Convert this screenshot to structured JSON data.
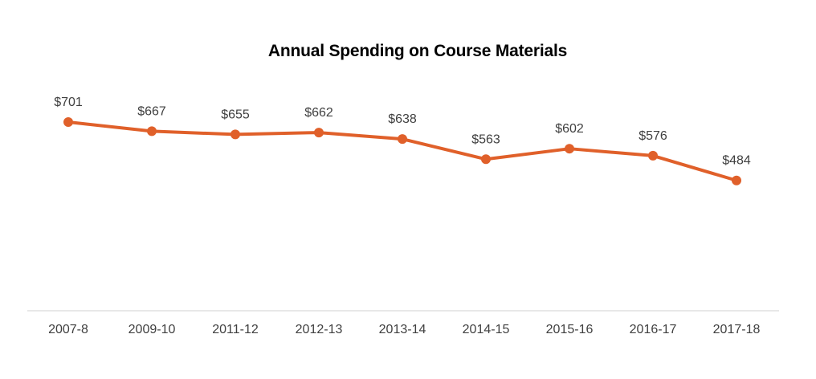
{
  "chart_data": {
    "type": "line",
    "title": "Annual Spending on Course Materials",
    "xlabel": "",
    "ylabel": "",
    "categories": [
      "2007-8",
      "2009-10",
      "2011-12",
      "2012-13",
      "2013-14",
      "2014-15",
      "2015-16",
      "2016-17",
      "2017-18"
    ],
    "series": [
      {
        "values": [
          701,
          667,
          655,
          662,
          638,
          563,
          602,
          576,
          484
        ],
        "data_labels": [
          "$701",
          "$667",
          "$655",
          "$662",
          "$638",
          "$563",
          "$602",
          "$576",
          "$484"
        ],
        "color": "#E0602A"
      }
    ],
    "ylim": [
      0,
      701
    ],
    "grid": false,
    "legend": "none",
    "axis_color": "#D9D9D9"
  }
}
